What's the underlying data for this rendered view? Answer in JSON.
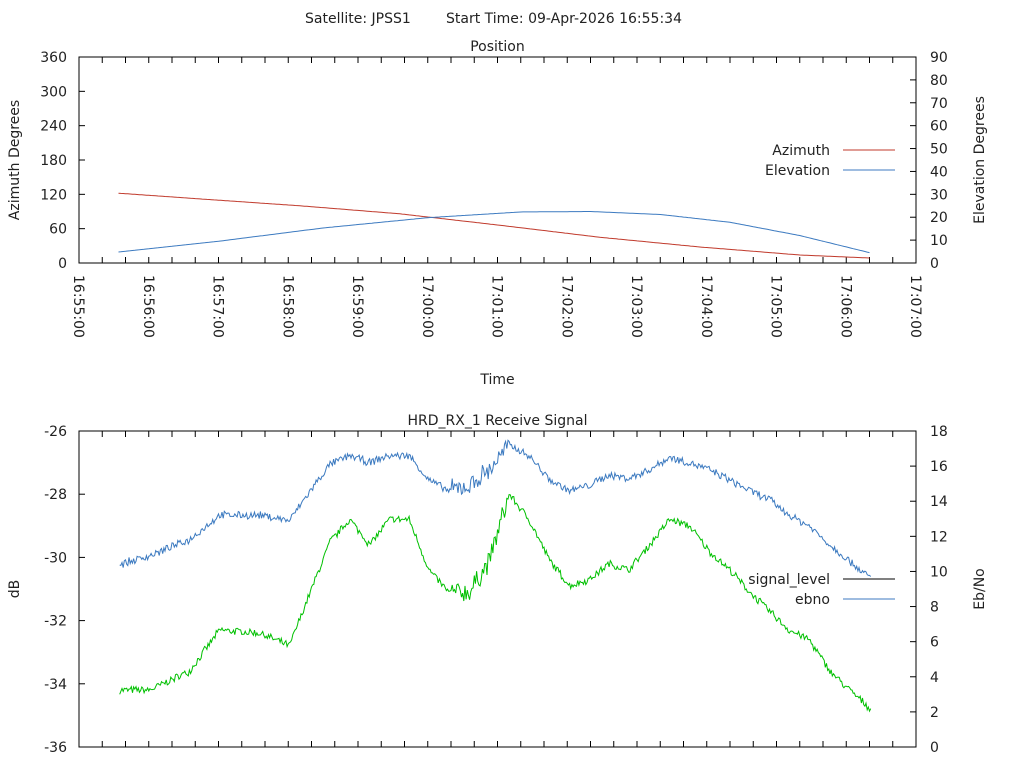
{
  "header": {
    "satellite_label": "Satellite: JPSS1",
    "start_label": "Start Time: 09-Apr-2026 16:55:34"
  },
  "chart_data": [
    {
      "type": "line",
      "title": "Position",
      "xlabel": "Time",
      "ylabel": "Azimuth Degrees",
      "y2label": "Elevation Degrees",
      "x_unit": "seconds after 16:55:00",
      "xlim": [
        0,
        720
      ],
      "x_ticks": [
        "16:55:00",
        "16:56:00",
        "16:57:00",
        "16:58:00",
        "16:59:00",
        "17:00:00",
        "17:01:00",
        "17:02:00",
        "17:03:00",
        "17:04:00",
        "17:05:00",
        "17:06:00",
        "17:07:00"
      ],
      "ylim": [
        0,
        360
      ],
      "y_ticks": [
        "0",
        "60",
        "120",
        "180",
        "240",
        "300",
        "360"
      ],
      "y2lim": [
        0,
        90
      ],
      "y2_ticks": [
        "0",
        "10",
        "20",
        "30",
        "40",
        "50",
        "60",
        "70",
        "80",
        "90"
      ],
      "legend": "right",
      "series": [
        {
          "name": "Azimuth",
          "axis": "y",
          "color": "#c0392b",
          "x": [
            34,
            104,
            190,
            276,
            362,
            448,
            534,
            620,
            681
          ],
          "y": [
            122,
            112,
            100,
            86,
            66,
            45,
            28,
            14,
            8.7
          ]
        },
        {
          "name": "Elevation",
          "axis": "y2",
          "color": "#3c7ac0",
          "x": [
            34,
            120,
            210,
            300,
            380,
            440,
            500,
            560,
            620,
            681
          ],
          "y": [
            4.8,
            9.5,
            15.3,
            19.8,
            22.3,
            22.5,
            21.2,
            17.8,
            12.0,
            4.4
          ]
        }
      ]
    },
    {
      "type": "line",
      "title": "HRD_RX_1 Receive Signal",
      "ylabel": "dB",
      "y2label": "Eb/No",
      "x_unit": "seconds after 16:55:00",
      "xlim": [
        0,
        720
      ],
      "ylim": [
        -36,
        -26
      ],
      "y_ticks": [
        "-36",
        "-34",
        "-32",
        "-30",
        "-28",
        "-26"
      ],
      "y2lim": [
        0,
        18
      ],
      "y2_ticks": [
        "0",
        "2",
        "4",
        "6",
        "8",
        "10",
        "12",
        "14",
        "16",
        "18"
      ],
      "legend": "right",
      "series": [
        {
          "name": "signal_level",
          "axis": "y",
          "color": "#00c000",
          "legend_color": "#000000",
          "x": [
            35,
            61,
            95,
            121,
            156,
            181,
            199,
            216,
            233,
            250,
            267,
            284,
            301,
            318,
            336,
            353,
            370,
            387,
            405,
            422,
            439,
            456,
            473,
            491,
            508,
            525,
            542,
            560,
            577,
            594,
            611,
            628,
            646,
            663,
            681
          ],
          "y": [
            -34.2,
            -34.2,
            -33.6,
            -32.3,
            -32.4,
            -32.8,
            -31.1,
            -29.5,
            -28.8,
            -29.6,
            -28.8,
            -28.8,
            -30.4,
            -31.1,
            -31.1,
            -30.1,
            -28.0,
            -28.8,
            -30.1,
            -30.9,
            -30.7,
            -30.2,
            -30.4,
            -29.6,
            -28.8,
            -29.0,
            -29.8,
            -30.4,
            -31.1,
            -31.7,
            -32.3,
            -32.6,
            -33.6,
            -34.2,
            -34.8
          ]
        },
        {
          "name": "ebno",
          "axis": "y2",
          "color": "#3c7ac0",
          "x": [
            35,
            61,
            95,
            121,
            156,
            181,
            199,
            216,
            233,
            250,
            267,
            284,
            301,
            318,
            336,
            353,
            370,
            387,
            405,
            422,
            439,
            456,
            473,
            491,
            508,
            525,
            542,
            560,
            577,
            594,
            611,
            628,
            646,
            663,
            681
          ],
          "y": [
            10.4,
            10.9,
            11.8,
            13.2,
            13.2,
            12.9,
            14.6,
            16.1,
            16.6,
            16.2,
            16.6,
            16.6,
            15.2,
            14.6,
            14.9,
            15.8,
            17.2,
            16.6,
            15.2,
            14.6,
            14.9,
            15.5,
            15.3,
            15.8,
            16.5,
            16.2,
            15.8,
            15.2,
            14.6,
            14.1,
            13.2,
            12.6,
            11.5,
            10.6,
            9.6
          ]
        }
      ]
    }
  ]
}
